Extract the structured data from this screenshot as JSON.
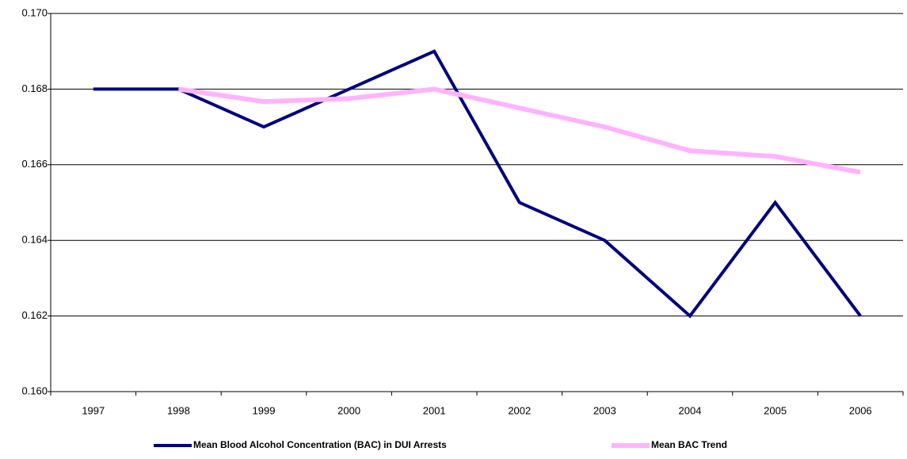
{
  "chart_data": {
    "type": "line",
    "categories": [
      "1997",
      "1998",
      "1999",
      "2000",
      "2001",
      "2002",
      "2003",
      "2004",
      "2005",
      "2006"
    ],
    "series": [
      {
        "name": "Mean Blood Alcohol Concentration (BAC) in DUI Arrests",
        "color": "#000080",
        "values": [
          0.168,
          0.168,
          0.167,
          0.168,
          0.169,
          0.165,
          0.164,
          0.162,
          0.165,
          0.162
        ]
      },
      {
        "name": "Mean BAC Trend",
        "color": "#ffb3ff",
        "values": [
          null,
          0.168,
          0.16767,
          0.16775,
          0.168,
          0.1675,
          0.167,
          0.16637,
          0.16622,
          0.1658
        ]
      }
    ],
    "ylim": [
      0.16,
      0.17
    ],
    "yticks": [
      {
        "value": 0.16,
        "label": "0.160"
      },
      0.162,
      0.164,
      0.166,
      0.168,
      {
        "value": 0.17,
        "label": "0.170"
      }
    ],
    "grid": true,
    "legend": "bottom"
  }
}
